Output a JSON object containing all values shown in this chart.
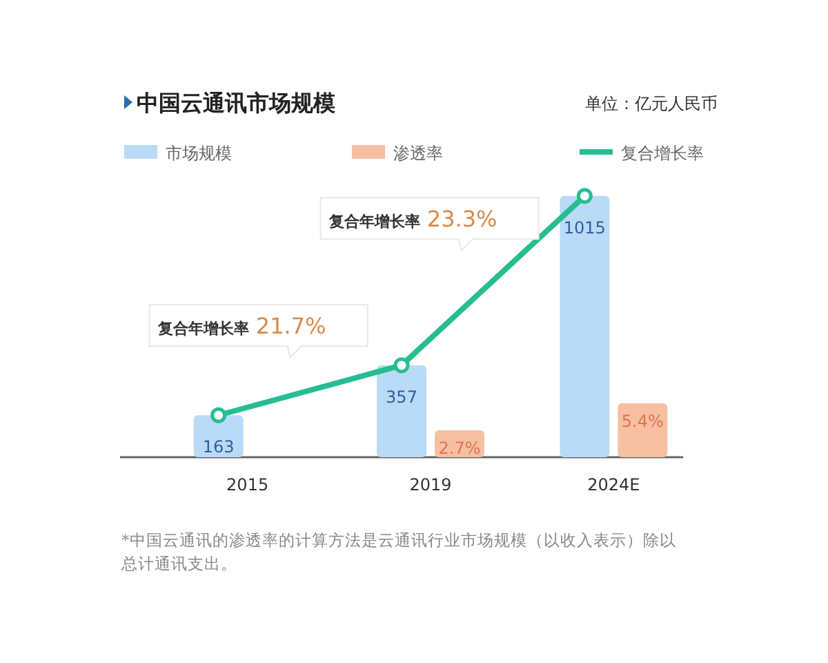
{
  "chart_data": {
    "type": "bar",
    "title": "中国云通讯市场规模",
    "subtitle": "单位：亿元人民币",
    "categories": [
      "2015",
      "2019",
      "2024E"
    ],
    "series": [
      {
        "name": "市场规模",
        "color": "#b9dbf6",
        "values": [
          163,
          357,
          1015
        ],
        "value_labels": [
          "163",
          "357",
          "1015"
        ]
      },
      {
        "name": "渗透率",
        "color": "#f7bfa2",
        "values": [
          null,
          2.7,
          5.4
        ],
        "value_labels": [
          null,
          "2.7%",
          "5.4%"
        ],
        "axis": "y2"
      },
      {
        "name": "复合增长率",
        "type": "line",
        "color": "#27bd92",
        "values": [
          163,
          357,
          1015
        ],
        "marker": "circle"
      }
    ],
    "legend": "top",
    "tick_labels": "x",
    "annotations": [
      "复合年增长率 21.7%",
      "复合年增长率 23.3%",
      "*中国云通讯的渗透率的计算方法是云通讯行业市场规模（以收入表示）除以总计通讯支出。"
    ]
  }
}
